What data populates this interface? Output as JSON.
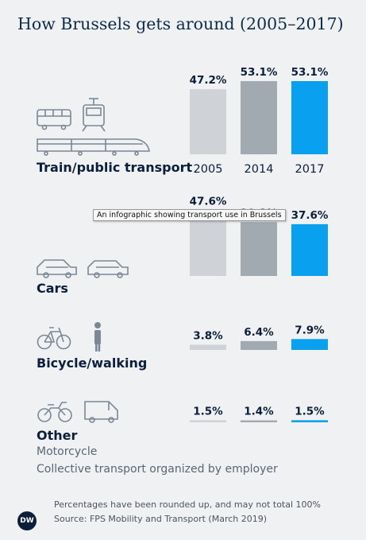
{
  "title": "How Brussels gets around (2005–2017)",
  "chart_data": {
    "type": "bar",
    "categories": [
      "2005",
      "2014",
      "2017"
    ],
    "colors": [
      "#cfd3d8",
      "#a1a9b1",
      "#0aa0f0"
    ],
    "groups": [
      {
        "name": "Train/public transport",
        "values": [
          47.2,
          53.1,
          53.1
        ],
        "value_labels": [
          "47.2%",
          "53.1%",
          "53.1%"
        ],
        "sub": []
      },
      {
        "name": "Cars",
        "values": [
          47.6,
          39.1,
          37.6
        ],
        "value_labels": [
          "47.6%",
          "39.1%",
          "37.6%"
        ],
        "sub": []
      },
      {
        "name": "Bicycle/walking",
        "values": [
          3.8,
          6.4,
          7.9
        ],
        "value_labels": [
          "3.8%",
          "6.4%",
          "7.9%"
        ],
        "sub": []
      },
      {
        "name": "Other",
        "values": [
          1.5,
          1.4,
          1.5
        ],
        "value_labels": [
          "1.5%",
          "1.4%",
          "1.5%"
        ],
        "sub": [
          "Motorcycle",
          "Collective transport organized by employer"
        ]
      }
    ],
    "ylim": [
      0,
      53.1
    ]
  },
  "tooltip": "An infographic showing transport use in Brussels",
  "footnote": "Percentages have been rounded up, and may not total 100%",
  "source": "Source: FPS Mobility and Transport (March 2019)",
  "logo_text": "DW",
  "icons": [
    "bus-icon",
    "tram-icon",
    "train-icon",
    "car-icon",
    "car-icon",
    "bicycle-icon",
    "pedestrian-icon",
    "motorcycle-icon",
    "van-icon"
  ]
}
